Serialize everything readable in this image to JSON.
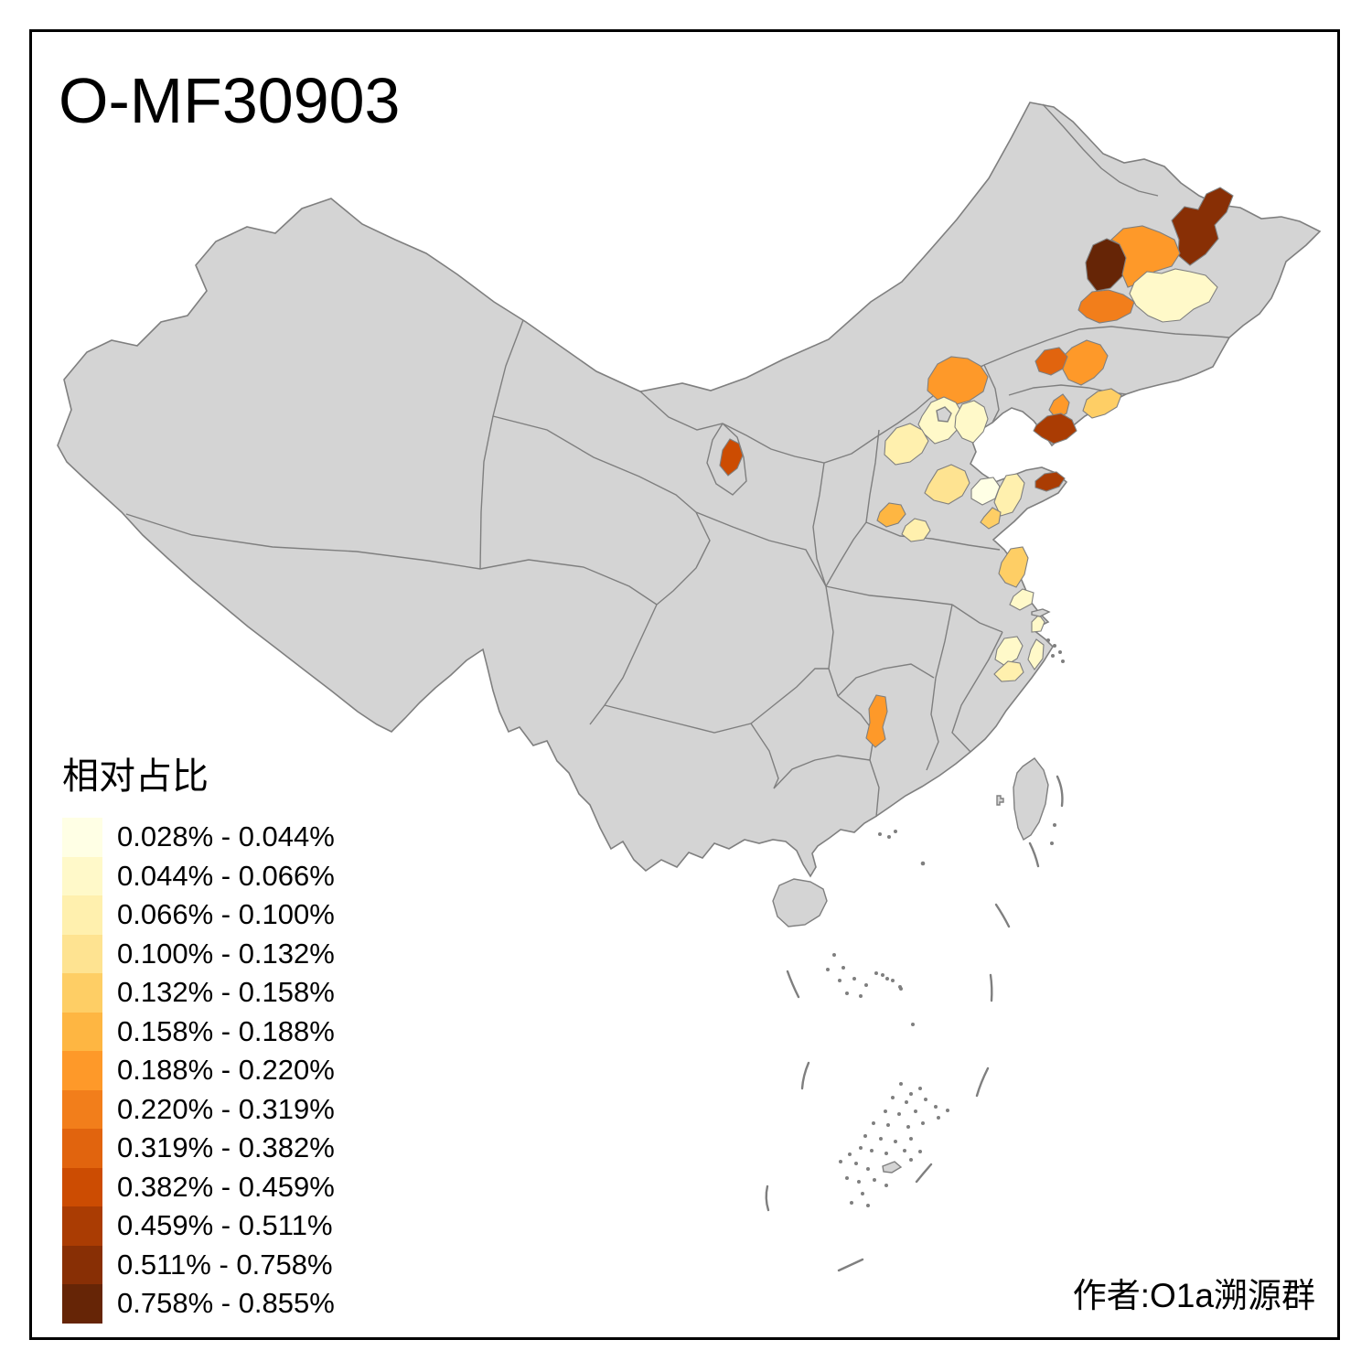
{
  "title": "O-MF30903",
  "attribution": "作者:O1a溯源群",
  "legend": {
    "title": "相对占比",
    "classes": [
      {
        "label": "0.028% - 0.044%",
        "color": "#FFFFE5"
      },
      {
        "label": "0.044% - 0.066%",
        "color": "#FFF9C9"
      },
      {
        "label": "0.066% - 0.100%",
        "color": "#FFF0AE"
      },
      {
        "label": "0.100% - 0.132%",
        "color": "#FEE391"
      },
      {
        "label": "0.132% - 0.158%",
        "color": "#FECE65"
      },
      {
        "label": "0.158% - 0.188%",
        "color": "#FEB642"
      },
      {
        "label": "0.188% - 0.220%",
        "color": "#FE9929"
      },
      {
        "label": "0.220% - 0.319%",
        "color": "#F27E1B"
      },
      {
        "label": "0.319% - 0.382%",
        "color": "#E1640E"
      },
      {
        "label": "0.382% - 0.459%",
        "color": "#CC4C02"
      },
      {
        "label": "0.459% - 0.511%",
        "color": "#AA3C03"
      },
      {
        "label": "0.511% - 0.758%",
        "color": "#882F05"
      },
      {
        "label": "0.758% - 0.855%",
        "color": "#662506"
      }
    ]
  },
  "map": {
    "land_fill": "#D4D4D4",
    "boundary_color": "#7F7F7F",
    "background": "#FFFFFF",
    "frame_color": "#000000",
    "regions": [
      {
        "id": "r01",
        "loc": "west Heilongjiang",
        "class": 13,
        "bin": "0.758% - 0.855%"
      },
      {
        "id": "r02",
        "loc": "northeast Heilongjiang",
        "class": 12,
        "bin": "0.511% - 0.758%"
      },
      {
        "id": "r03",
        "loc": "central Heilongjiang",
        "class": 7,
        "bin": "0.188% - 0.220%"
      },
      {
        "id": "r04",
        "loc": "Harbin area",
        "class": 2,
        "bin": "0.044% - 0.066%"
      },
      {
        "id": "r05",
        "loc": "southwest Heilongjiang",
        "class": 8,
        "bin": "0.220% - 0.319%"
      },
      {
        "id": "r06",
        "loc": "west Jilin",
        "class": 7,
        "bin": "0.188% - 0.220%"
      },
      {
        "id": "r07",
        "loc": "north Liaoning",
        "class": 9,
        "bin": "0.319% - 0.382%"
      },
      {
        "id": "r08",
        "loc": "central Liaoning",
        "class": 7,
        "bin": "0.188% - 0.220%"
      },
      {
        "id": "r09",
        "loc": "southeast Liaoning",
        "class": 5,
        "bin": "0.132% - 0.158%"
      },
      {
        "id": "r10",
        "loc": "Liaodong peninsula",
        "class": 11,
        "bin": "0.459% - 0.511%"
      },
      {
        "id": "r11",
        "loc": "northeast Hebei",
        "class": 7,
        "bin": "0.188% - 0.220%"
      },
      {
        "id": "r12",
        "loc": "Beijing",
        "class": 2,
        "bin": "0.044% - 0.066%"
      },
      {
        "id": "r13",
        "loc": "central Hebei",
        "class": 3,
        "bin": "0.066% - 0.100%"
      },
      {
        "id": "r14",
        "loc": "Tianjin area",
        "class": 2,
        "bin": "0.044% - 0.066%"
      },
      {
        "id": "r15",
        "loc": "Ningxia",
        "class": 10,
        "bin": "0.382% - 0.459%"
      },
      {
        "id": "r16",
        "loc": "north Henan west",
        "class": 6,
        "bin": "0.158% - 0.188%"
      },
      {
        "id": "r17",
        "loc": "north Henan east",
        "class": 3,
        "bin": "0.066% - 0.100%"
      },
      {
        "id": "r18",
        "loc": "west Shandong",
        "class": 4,
        "bin": "0.100% - 0.132%"
      },
      {
        "id": "r19",
        "loc": "north Shandong",
        "class": 1,
        "bin": "0.028% - 0.044%"
      },
      {
        "id": "r20",
        "loc": "Shandong peninsula north",
        "class": 3,
        "bin": "0.066% - 0.100%"
      },
      {
        "id": "r21",
        "loc": "Shandong peninsula east tip",
        "class": 11,
        "bin": "0.459% - 0.511%"
      },
      {
        "id": "r22",
        "loc": "southeast Shandong coast",
        "class": 5,
        "bin": "0.132% - 0.158%"
      },
      {
        "id": "r23",
        "loc": "central Jiangsu coast",
        "class": 5,
        "bin": "0.132% - 0.158%"
      },
      {
        "id": "r24",
        "loc": "southeast Jiangsu",
        "class": 2,
        "bin": "0.044% - 0.066%"
      },
      {
        "id": "r25",
        "loc": "Shanghai area",
        "class": 2,
        "bin": "0.044% - 0.066%"
      },
      {
        "id": "r26",
        "loc": "north Zhejiang",
        "class": 2,
        "bin": "0.044% - 0.066%"
      },
      {
        "id": "r27",
        "loc": "central Zhejiang",
        "class": 3,
        "bin": "0.066% - 0.100%"
      },
      {
        "id": "r28",
        "loc": "east Zhejiang coast",
        "class": 2,
        "bin": "0.044% - 0.066%"
      },
      {
        "id": "r29",
        "loc": "west Hunan",
        "class": 7,
        "bin": "0.188% - 0.220%"
      }
    ]
  }
}
